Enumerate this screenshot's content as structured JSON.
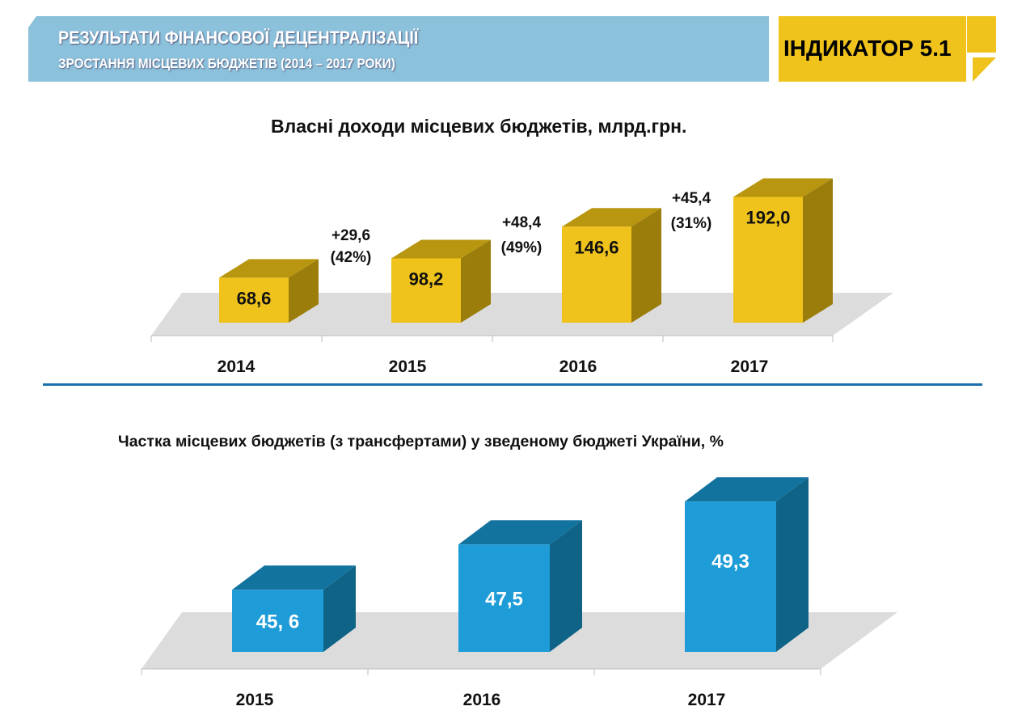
{
  "header": {
    "title": "РЕЗУЛЬТАТИ ФІНАНСОВОЇ ДЕЦЕНТРАЛІЗАЦІЇ",
    "subtitle": "ЗРОСТАННЯ МІСЦЕВИХ БЮДЖЕТІВ (2014 – 2017 РОКИ)",
    "indicator": "ІНДИКАТОР 5.1"
  },
  "chart_data": [
    {
      "type": "bar",
      "title": "Власні доходи місцевих бюджетів, млрд.грн.",
      "categories": [
        "2014",
        "2015",
        "2016",
        "2017"
      ],
      "values": [
        68.6,
        98.2,
        146.6,
        192.0
      ],
      "labels": [
        "68,6",
        "98,2",
        "146,6",
        "192,0"
      ],
      "annotations": [
        {
          "line1": "+29,6",
          "line2": "(42%)"
        },
        {
          "line1": "+48,4",
          "line2": "(49%)"
        },
        {
          "line1": "+45,4",
          "line2": "(31%)"
        }
      ],
      "colors": {
        "front": "#efc31c",
        "top": "#b8960f",
        "side": "#9a7d0b"
      }
    },
    {
      "type": "bar",
      "title": "Частка місцевих бюджетів (з трансфертами) у зведеному бюджеті України, %",
      "categories": [
        "2015",
        "2016",
        "2017"
      ],
      "values": [
        45.6,
        47.5,
        49.3
      ],
      "labels": [
        "45, 6",
        "47,5",
        "49,3"
      ],
      "colors": {
        "front": "#1e9cd7",
        "top": "#13739f",
        "side": "#0f6386"
      }
    }
  ]
}
